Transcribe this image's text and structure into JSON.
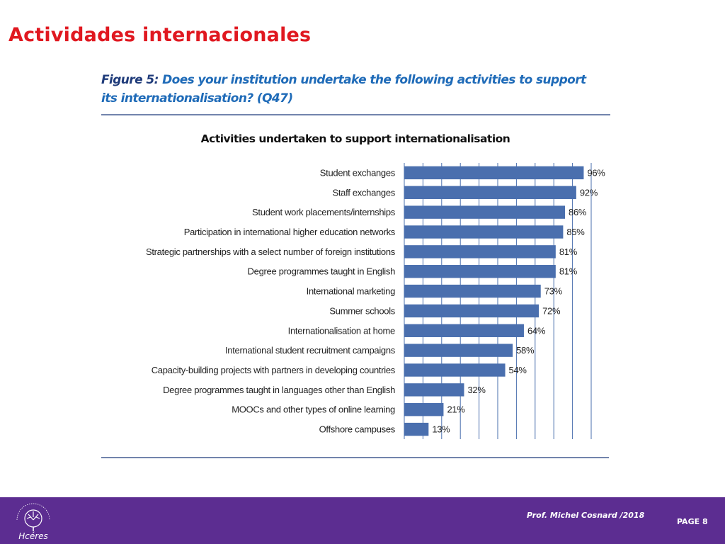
{
  "slide": {
    "title": "Actividades internacionales"
  },
  "figure": {
    "label": "Figure 5:",
    "question": "Does your institution undertake the following activities to support its internationalisation? (Q47)"
  },
  "chart_data": {
    "type": "bar",
    "orientation": "horizontal",
    "title": "Activities undertaken to support internationalisation",
    "xlabel": "",
    "ylabel": "",
    "xlim": [
      0,
      100
    ],
    "grid": true,
    "categories": [
      "Student exchanges",
      "Staff exchanges",
      "Student work placements/internships",
      "Participation in international higher education networks",
      "Strategic partnerships with a select number of foreign institutions",
      "Degree programmes taught in English",
      "International marketing",
      "Summer schools",
      "Internationalisation at home",
      "International student recruitment campaigns",
      "Capacity-building projects with partners in developing countries",
      "Degree programmes taught in languages other than English",
      "MOOCs and other types of online learning",
      "Offshore campuses"
    ],
    "values": [
      96,
      92,
      86,
      85,
      81,
      81,
      73,
      72,
      64,
      58,
      54,
      32,
      21,
      13
    ],
    "value_labels": [
      "96%",
      "92%",
      "86%",
      "85%",
      "81%",
      "81%",
      "73%",
      "72%",
      "64%",
      "58%",
      "54%",
      "32%",
      "21%",
      "13%"
    ],
    "colors": {
      "bar": "#4a6fae",
      "grid": "#4a6fae",
      "rule": "#1f3b7a",
      "text": "#222222"
    }
  },
  "footer": {
    "author": "Prof. Michel Cosnard /2018",
    "page": "PAGE 8",
    "logo_icon": "hceres-tree-logo"
  }
}
